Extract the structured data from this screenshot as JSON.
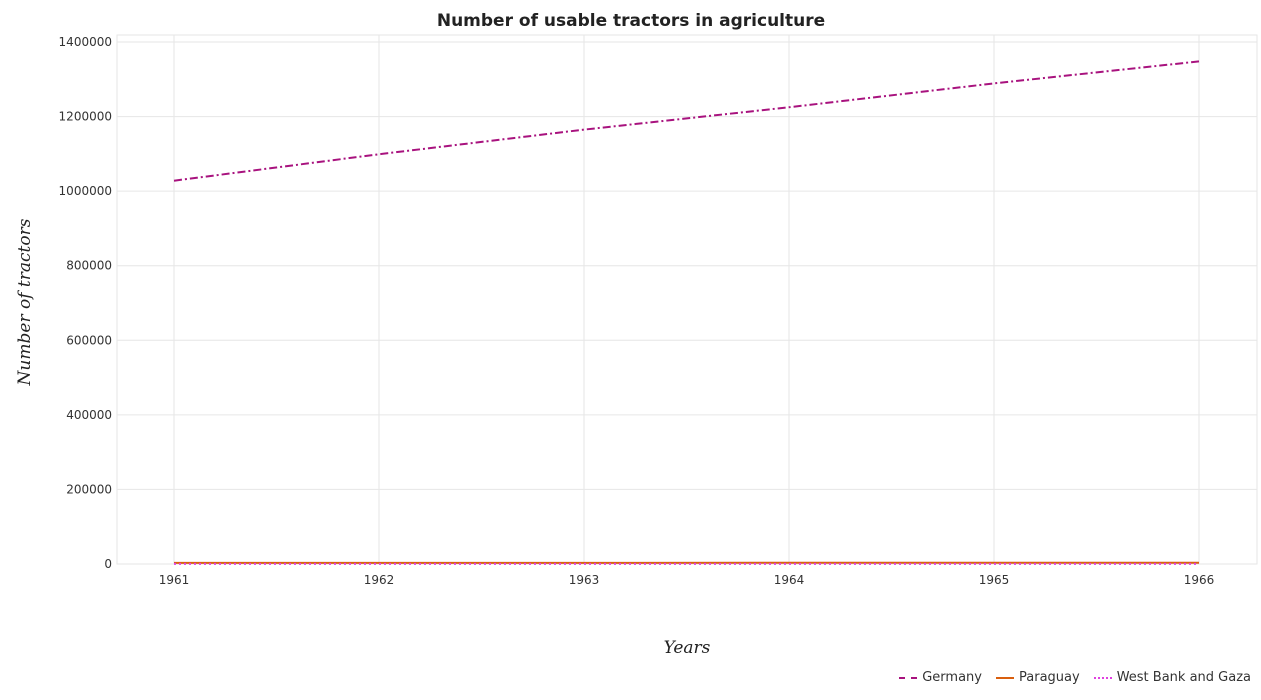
{
  "chart_data": {
    "type": "line",
    "title": "Number of usable tractors in agriculture",
    "xlabel": "Years",
    "ylabel": "Number of tractors",
    "categories": [
      "1961",
      "1962",
      "1963",
      "1964",
      "1965",
      "1966"
    ],
    "ylim": [
      0,
      1400000
    ],
    "yticks": [
      0,
      200000,
      400000,
      600000,
      800000,
      1000000,
      1200000,
      1400000
    ],
    "ytick_labels": [
      "0",
      "200000",
      "400000",
      "600000",
      "800000",
      "1000000",
      "1200000",
      "1400000"
    ],
    "grid": true,
    "legend_position": "bottom-right",
    "series": [
      {
        "name": "Germany",
        "color": "#a8127e",
        "dash": "dashdot",
        "values": [
          1028000,
          1099000,
          1165000,
          1225000,
          1289000,
          1348000
        ]
      },
      {
        "name": "Paraguay",
        "color": "#d95f0e",
        "dash": "solid",
        "values": [
          2900,
          3000,
          3100,
          3200,
          3300,
          3400
        ]
      },
      {
        "name": "West Bank and Gaza",
        "color": "#e040e0",
        "dash": "dotted",
        "values": [
          500,
          500,
          500,
          500,
          500,
          500
        ]
      }
    ]
  }
}
